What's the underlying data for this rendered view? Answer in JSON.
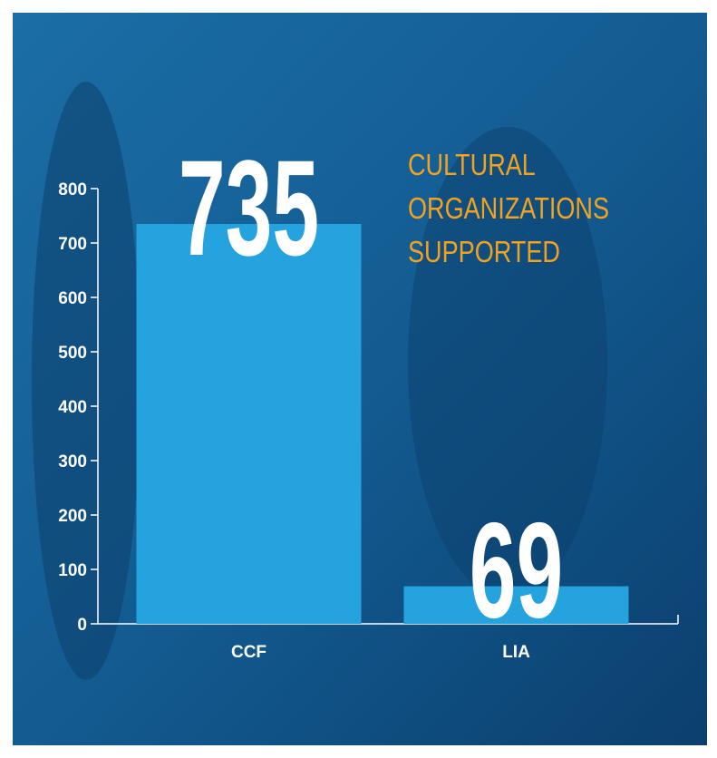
{
  "chart_data": {
    "type": "bar",
    "title": "CULTURAL ORGANIZATIONS SUPPORTED",
    "categories": [
      "CCF",
      "LIA"
    ],
    "values": [
      735,
      69
    ],
    "color": "#25a3de",
    "ylim": [
      0,
      800
    ],
    "yticks": [
      0,
      100,
      200,
      300,
      400,
      500,
      600,
      700,
      800
    ]
  }
}
